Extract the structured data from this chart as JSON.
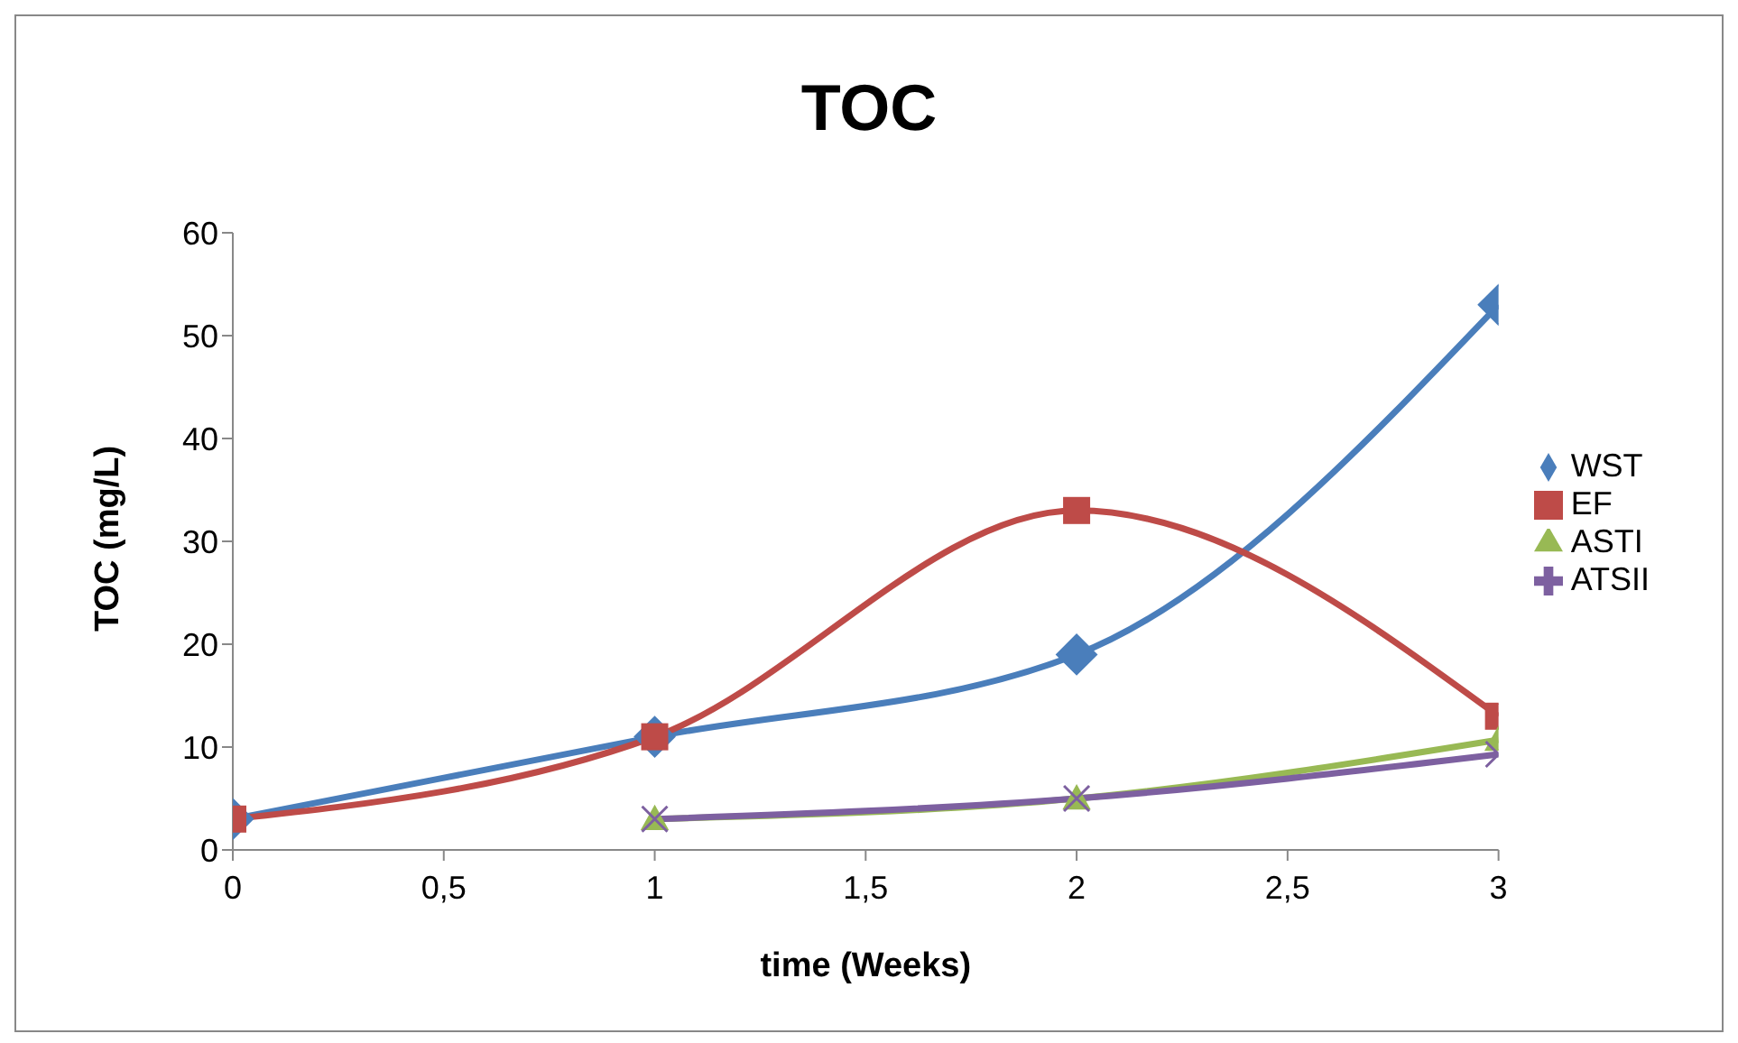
{
  "chart_data": {
    "type": "line",
    "title": "TOC",
    "xlabel": "time (Weeks)",
    "ylabel": "TOC (mg/L)",
    "xlim": [
      0,
      3
    ],
    "xticks": [
      0,
      {
        "value": 0.5,
        "label": "0,5"
      },
      1,
      {
        "value": 1.5,
        "label": "1,5"
      },
      2,
      {
        "value": 2.5,
        "label": "2,5"
      },
      3
    ],
    "ylim": [
      0,
      60
    ],
    "yticks": [
      0,
      10,
      20,
      30,
      40,
      50,
      60
    ],
    "grid": false,
    "legend": "right",
    "line_style": "solid",
    "series": [
      {
        "name": "WST",
        "color": "#4a7ebb",
        "marker": "diamond",
        "x": [
          0,
          1,
          2,
          3
        ],
        "values": [
          3,
          11,
          19,
          53
        ]
      },
      {
        "name": "EF",
        "color": "#be4b48",
        "marker": "square",
        "x": [
          0,
          1,
          2,
          3
        ],
        "values": [
          3,
          11,
          33,
          13
        ]
      },
      {
        "name": "ASTI",
        "color": "#98b954",
        "marker": "triangle",
        "x": [
          1,
          2,
          3
        ],
        "values": [
          3,
          5,
          10.7
        ]
      },
      {
        "name": "ATSII",
        "color": "#7d60a0",
        "marker": "cross",
        "x": [
          1,
          2,
          3
        ],
        "values": [
          3,
          5,
          9.3
        ]
      }
    ]
  }
}
